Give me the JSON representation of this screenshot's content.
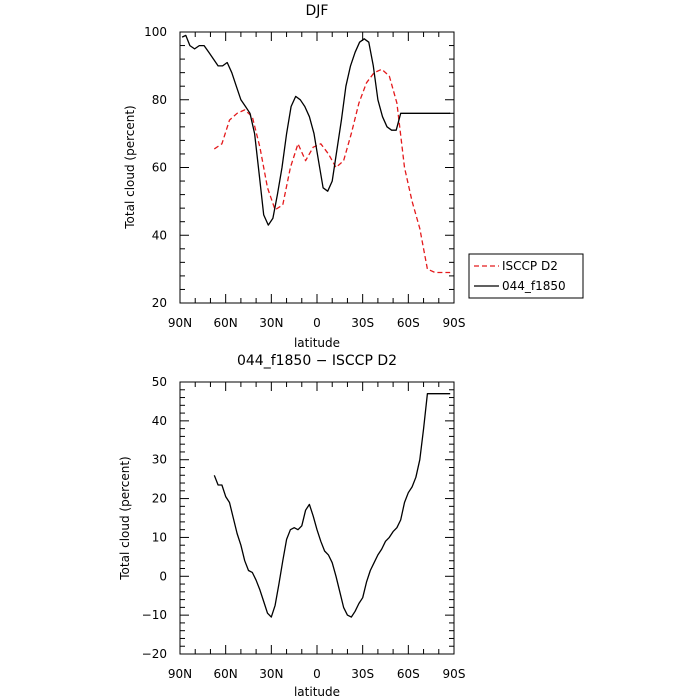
{
  "chart_data": [
    {
      "type": "line",
      "title": "DJF",
      "xlabel": "latitude",
      "ylabel": "Total cloud (percent)",
      "xlim": [
        90,
        -90
      ],
      "ylim": [
        20,
        100
      ],
      "x_ticks": [
        90,
        60,
        30,
        0,
        -30,
        -60,
        -90
      ],
      "x_tick_labels": [
        "90N",
        "60N",
        "30N",
        "0",
        "30S",
        "60S",
        "90S"
      ],
      "y_ticks": [
        20,
        40,
        60,
        80,
        100
      ],
      "y_tick_labels": [
        "20",
        "40",
        "60",
        "80",
        "100"
      ],
      "grid": false,
      "legend": "outside-right",
      "series": [
        {
          "name": "ISCCP D2",
          "color": "#e41a1c",
          "dashed": true,
          "x": [
            67.5,
            62.5,
            57.5,
            52.5,
            47.5,
            42.5,
            37.5,
            32.5,
            27.5,
            22.5,
            17.5,
            12.5,
            7.5,
            2.5,
            -2.5,
            -7.5,
            -12.5,
            -17.5,
            -22.5,
            -27.5,
            -32.5,
            -37.5,
            -42.5,
            -47.5,
            -52.5,
            -57.5,
            -62.5,
            -67.5,
            -72.5,
            -77.5,
            -82.5,
            -87.5
          ],
          "y": [
            65.5,
            67,
            74,
            76,
            77,
            75,
            66,
            54,
            47.5,
            49,
            60,
            67,
            62,
            66,
            67,
            64,
            60,
            62,
            70,
            79,
            85,
            88,
            89,
            87,
            79,
            60,
            50,
            42,
            30,
            29,
            29,
            29
          ]
        },
        {
          "name": "044_f1850",
          "color": "#000000",
          "dashed": false,
          "x": [
            88.6,
            86.2,
            83.5,
            80.4,
            77.3,
            74.2,
            71.1,
            68,
            65,
            62,
            59,
            56,
            53,
            50,
            47,
            44,
            41,
            38,
            35,
            32,
            29,
            26,
            23,
            20,
            17,
            14,
            11,
            8,
            5,
            2,
            -1,
            -4,
            -7,
            -10,
            -13,
            -16,
            -19,
            -22,
            -25,
            -28,
            -31,
            -34,
            -37,
            -40,
            -43,
            -46,
            -49,
            -52,
            -55,
            -58,
            -61,
            -64,
            -67,
            -70,
            -73,
            -76,
            -79,
            -82,
            -85,
            -87.5
          ],
          "y": [
            98.5,
            99,
            96,
            95,
            96,
            96,
            94,
            92,
            90,
            90,
            91,
            88,
            84,
            80,
            78,
            76,
            70,
            58,
            46,
            43,
            45,
            52,
            60,
            70,
            78,
            81,
            80,
            78,
            75,
            70,
            62,
            54,
            53,
            56,
            65,
            74,
            84,
            90,
            94,
            97,
            98,
            97,
            90,
            80,
            75,
            72,
            71,
            71,
            76,
            76,
            76,
            76,
            76,
            76,
            76,
            76,
            76,
            76,
            76,
            76
          ]
        }
      ]
    },
    {
      "type": "line",
      "title": "044_f1850 − ISCCP D2",
      "xlabel": "latitude",
      "ylabel": "Total cloud (percent)",
      "xlim": [
        90,
        -90
      ],
      "ylim": [
        -20,
        50
      ],
      "x_ticks": [
        90,
        60,
        30,
        0,
        -30,
        -60,
        -90
      ],
      "x_tick_labels": [
        "90N",
        "60N",
        "30N",
        "0",
        "30S",
        "60S",
        "90S"
      ],
      "y_ticks": [
        -20,
        -10,
        0,
        10,
        20,
        30,
        40,
        50
      ],
      "y_tick_labels": [
        "−20",
        "−10",
        "0",
        "10",
        "20",
        "30",
        "40",
        "50"
      ],
      "grid": false,
      "series": [
        {
          "name": "",
          "color": "#000000",
          "dashed": false,
          "x": [
            67.5,
            65,
            62.5,
            60,
            57.5,
            55,
            52.5,
            50,
            47.5,
            45,
            42.5,
            40,
            37.5,
            35,
            32.5,
            30,
            27.5,
            25,
            22.5,
            20,
            17.5,
            15,
            12.5,
            10,
            7.5,
            5,
            2.5,
            0,
            -2.5,
            -5,
            -7.5,
            -10,
            -12.5,
            -15,
            -17.5,
            -20,
            -22.5,
            -25,
            -27.5,
            -30,
            -32.5,
            -35,
            -37.5,
            -40,
            -42.5,
            -45,
            -47.5,
            -50,
            -52.5,
            -55,
            -57.5,
            -60,
            -62.5,
            -65,
            -67.5,
            -70,
            -72.5,
            -75,
            -77.5,
            -80,
            -82.5,
            -85,
            -87.5
          ],
          "y": [
            26,
            23.5,
            23.5,
            20.5,
            19,
            15,
            11,
            8,
            4,
            1.5,
            1,
            -1,
            -3.5,
            -6.5,
            -9.5,
            -10.5,
            -7.5,
            -2,
            4,
            9.5,
            12,
            12.5,
            12,
            13,
            17,
            18.5,
            15.5,
            12,
            9,
            6.5,
            5.5,
            3.5,
            0,
            -4,
            -8,
            -10,
            -10.5,
            -9,
            -7,
            -5.5,
            -1.5,
            1.5,
            3.5,
            5.5,
            7,
            9,
            10,
            11.5,
            12.5,
            14.5,
            19,
            21.5,
            23,
            25.5,
            30,
            38,
            47,
            47,
            47,
            47,
            47,
            47,
            47
          ]
        }
      ]
    }
  ]
}
